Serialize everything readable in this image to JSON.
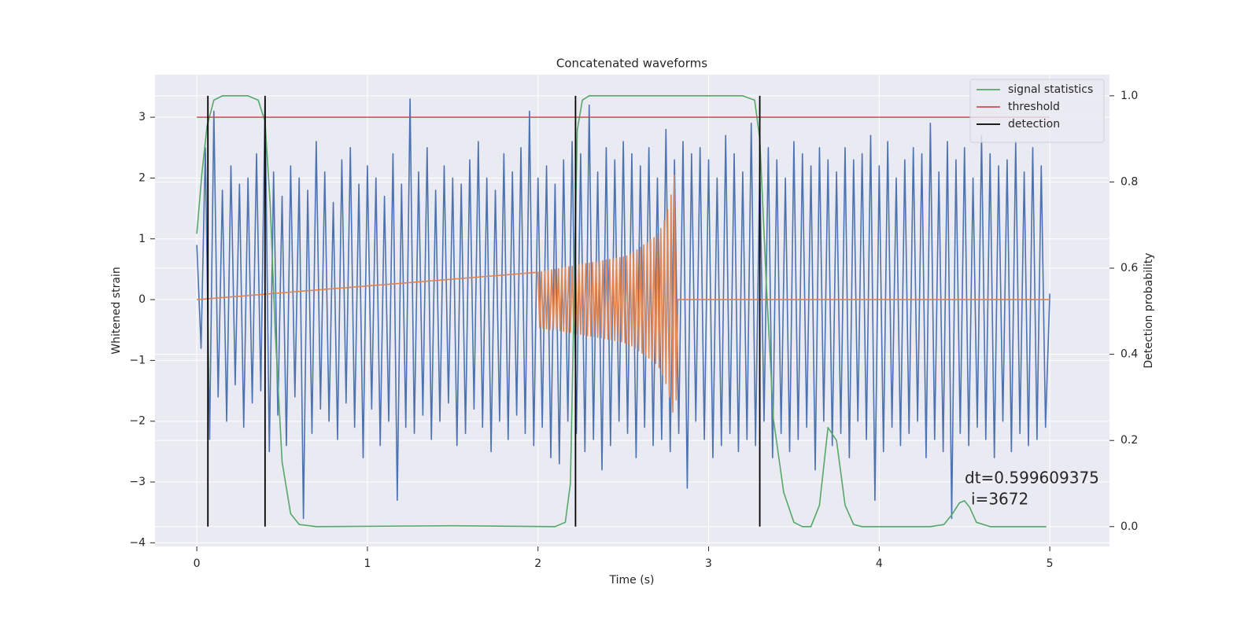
{
  "chart_data": {
    "type": "line",
    "title": "Concatenated waveforms",
    "xlabel": "Time (s)",
    "ylabel": "Whitened strain",
    "y2label": "Detection probability",
    "xlim": [
      -0.245,
      5.35
    ],
    "ylim": [
      -4.06,
      3.7
    ],
    "y2lim": [
      -0.046,
      1.049
    ],
    "xticks": [
      0,
      1,
      2,
      3,
      4,
      5
    ],
    "yticks": [
      {
        "value": -4,
        "label": "−4"
      },
      {
        "value": -3,
        "label": "−3"
      },
      {
        "value": -2,
        "label": "−2"
      },
      {
        "value": -1,
        "label": "−1"
      },
      0,
      1,
      2,
      3
    ],
    "y2ticks": [
      {
        "value": 0,
        "label": "0.0"
      },
      0.2,
      0.4,
      0.6,
      0.8,
      {
        "value": 1,
        "label": "1.0"
      }
    ],
    "grid": true,
    "legend": "upper right",
    "series": [
      {
        "color": "#4c72b0",
        "axis": "y",
        "x": [
          0,
          0.025,
          0.05,
          0.075,
          0.1,
          0.125,
          0.15,
          0.175,
          0.2,
          0.225,
          0.25,
          0.275,
          0.3,
          0.325,
          0.35,
          0.375,
          0.4,
          0.425,
          0.45,
          0.475,
          0.5,
          0.525,
          0.55,
          0.575,
          0.6,
          0.625,
          0.65,
          0.675,
          0.7,
          0.725,
          0.75,
          0.775,
          0.8,
          0.825,
          0.85,
          0.875,
          0.9,
          0.925,
          0.95,
          0.975,
          1,
          1.025,
          1.05,
          1.075,
          1.1,
          1.125,
          1.15,
          1.175,
          1.2,
          1.225,
          1.25,
          1.275,
          1.3,
          1.325,
          1.35,
          1.375,
          1.4,
          1.425,
          1.45,
          1.475,
          1.5,
          1.525,
          1.55,
          1.575,
          1.6,
          1.625,
          1.65,
          1.675,
          1.7,
          1.725,
          1.75,
          1.775,
          1.8,
          1.825,
          1.85,
          1.875,
          1.9,
          1.925,
          1.95,
          1.975,
          2,
          2.025,
          2.05,
          2.075,
          2.1,
          2.125,
          2.15,
          2.175,
          2.2,
          2.225,
          2.25,
          2.275,
          2.3,
          2.325,
          2.35,
          2.375,
          2.4,
          2.425,
          2.45,
          2.475,
          2.5,
          2.525,
          2.55,
          2.575,
          2.6,
          2.625,
          2.65,
          2.675,
          2.7,
          2.725,
          2.75,
          2.775,
          2.8,
          2.825,
          2.85,
          2.875,
          2.9,
          2.925,
          2.95,
          2.975,
          3,
          3.025,
          3.05,
          3.075,
          3.1,
          3.125,
          3.15,
          3.175,
          3.2,
          3.225,
          3.25,
          3.275,
          3.3,
          3.325,
          3.35,
          3.375,
          3.4,
          3.425,
          3.45,
          3.475,
          3.5,
          3.525,
          3.55,
          3.575,
          3.6,
          3.625,
          3.65,
          3.675,
          3.7,
          3.725,
          3.75,
          3.775,
          3.8,
          3.825,
          3.85,
          3.875,
          3.9,
          3.925,
          3.95,
          3.975,
          4,
          4.025,
          4.05,
          4.075,
          4.1,
          4.125,
          4.15,
          4.175,
          4.2,
          4.225,
          4.25,
          4.275,
          4.3,
          4.325,
          4.35,
          4.375,
          4.4,
          4.425,
          4.45,
          4.475,
          4.5,
          4.525,
          4.55,
          4.575,
          4.6,
          4.625,
          4.65,
          4.675,
          4.7,
          4.725,
          4.75,
          4.775,
          4.8,
          4.825,
          4.85,
          4.875,
          4.9,
          4.925,
          4.95,
          4.975,
          5
        ],
        "values": [
          0.9,
          -0.8,
          2.5,
          -2.3,
          3.1,
          -1.6,
          1.8,
          -2.0,
          2.2,
          -1.4,
          1.9,
          -2.1,
          2.0,
          -1.7,
          2.4,
          -1.5,
          3.3,
          -2.5,
          2.1,
          -1.9,
          1.7,
          -2.4,
          2.2,
          -1.6,
          2.0,
          -3.6,
          1.8,
          -2.2,
          2.6,
          -1.8,
          2.1,
          -2.0,
          1.6,
          -2.3,
          2.3,
          -1.7,
          2.5,
          -2.1,
          1.9,
          -2.6,
          2.2,
          -1.8,
          2.0,
          -2.4,
          1.7,
          -2.0,
          2.4,
          -3.3,
          1.9,
          -2.1,
          3.3,
          -2.2,
          2.1,
          -1.9,
          2.5,
          -2.3,
          1.8,
          -2.0,
          2.2,
          -1.7,
          2.0,
          -2.4,
          1.9,
          -2.2,
          2.3,
          -1.8,
          2.6,
          -2.1,
          2.0,
          -2.5,
          1.8,
          -2.0,
          2.4,
          -2.3,
          2.1,
          -1.9,
          2.5,
          -2.2,
          3.1,
          -2.4,
          2.0,
          -2.1,
          2.2,
          -2.6,
          1.9,
          -2.7,
          2.3,
          -2.0,
          2.6,
          -2.2,
          2.4,
          -2.5,
          3.2,
          -2.3,
          2.1,
          -2.8,
          2.5,
          -2.4,
          2.3,
          -2.0,
          2.6,
          -2.2,
          2.4,
          -2.6,
          2.2,
          -2.1,
          2.5,
          -2.4,
          2.0,
          -2.3,
          2.8,
          -2.5,
          2.3,
          -2.2,
          2.6,
          -3.1,
          2.4,
          -2.0,
          2.5,
          -2.3,
          2.3,
          -2.6,
          2.0,
          -2.4,
          2.7,
          -2.2,
          2.4,
          -2.5,
          2.1,
          -2.3,
          2.9,
          -2.4,
          2.2,
          -2.0,
          2.5,
          -2.6,
          2.3,
          -2.2,
          2.0,
          -2.5,
          2.6,
          -2.3,
          2.4,
          -2.1,
          2.2,
          -2.8,
          2.5,
          -2.0,
          2.3,
          -2.4,
          2.1,
          -2.2,
          2.5,
          -2.6,
          2.3,
          -2.0,
          2.4,
          -2.3,
          2.7,
          -3.3,
          2.2,
          -2.5,
          2.6,
          -2.1,
          2.0,
          -2.4,
          2.3,
          -2.2,
          2.5,
          -2.0,
          2.4,
          -2.6,
          2.9,
          -2.3,
          2.1,
          -2.5,
          2.6,
          -3.6,
          2.3,
          -2.2,
          2.5,
          -2.4,
          2.0,
          -2.1,
          2.7,
          -2.3,
          2.4,
          -2.6,
          2.2,
          -2.0,
          2.3,
          -2.5,
          2.6,
          -2.2,
          2.1,
          -2.4,
          2.5,
          -2.3,
          2.2,
          -2.1,
          0.1
        ]
      },
      {
        "color": "#dd8452",
        "axis": "y",
        "x": [
          0,
          2,
          2.01,
          2.02,
          2.03,
          2.04,
          2.05,
          2.06,
          2.07,
          2.08,
          2.09,
          2.1,
          2.11,
          2.12,
          2.13,
          2.14,
          2.15,
          2.16,
          2.17,
          2.18,
          2.19,
          2.2,
          2.21,
          2.22,
          2.23,
          2.24,
          2.25,
          2.26,
          2.27,
          2.28,
          2.29,
          2.3,
          2.31,
          2.32,
          2.33,
          2.34,
          2.35,
          2.36,
          2.37,
          2.38,
          2.39,
          2.4,
          2.41,
          2.42,
          2.43,
          2.44,
          2.45,
          2.46,
          2.47,
          2.48,
          2.49,
          2.5,
          2.51,
          2.52,
          2.53,
          2.54,
          2.55,
          2.56,
          2.57,
          2.58,
          2.59,
          2.6,
          2.61,
          2.62,
          2.63,
          2.64,
          2.65,
          2.66,
          2.67,
          2.68,
          2.69,
          2.7,
          2.71,
          2.72,
          2.73,
          2.74,
          2.75,
          2.76,
          2.77,
          2.78,
          2.79,
          2.8,
          2.81,
          2.82,
          5
        ],
        "values": [
          0,
          0.45,
          -0.46,
          0.46,
          -0.47,
          0.47,
          -0.48,
          0.48,
          -0.49,
          0.49,
          -0.5,
          0.5,
          -0.5,
          0.51,
          -0.51,
          0.52,
          -0.52,
          0.53,
          -0.53,
          0.54,
          -0.54,
          0.55,
          -0.55,
          0.56,
          -0.56,
          0.57,
          -0.57,
          0.58,
          -0.58,
          0.59,
          -0.59,
          0.6,
          -0.6,
          0.61,
          -0.61,
          0.62,
          -0.62,
          0.63,
          -0.63,
          0.64,
          -0.64,
          0.65,
          -0.65,
          0.66,
          -0.66,
          0.67,
          -0.67,
          0.68,
          -0.68,
          0.69,
          -0.69,
          0.7,
          -0.71,
          0.72,
          -0.73,
          0.74,
          -0.76,
          0.78,
          -0.8,
          0.82,
          -0.84,
          0.86,
          -0.88,
          0.9,
          -0.92,
          0.94,
          -0.96,
          0.98,
          -1.0,
          1.02,
          -1.05,
          1.08,
          -1.12,
          1.17,
          -1.23,
          1.3,
          -1.38,
          1.48,
          -1.6,
          1.72,
          -1.85,
          2.05,
          -1.65,
          0,
          0
        ]
      },
      {
        "name": "signal statistics",
        "color": "#55a868",
        "axis": "y2",
        "x": [
          0,
          0.03,
          0.06,
          0.1,
          0.15,
          0.2,
          0.3,
          0.36,
          0.4,
          0.43,
          0.46,
          0.5,
          0.55,
          0.6,
          0.7,
          1.5,
          2.1,
          2.16,
          2.19,
          2.21,
          2.23,
          2.26,
          2.3,
          2.4,
          3.2,
          3.27,
          3.3,
          3.34,
          3.38,
          3.44,
          3.5,
          3.55,
          3.6,
          3.65,
          3.7,
          3.75,
          3.8,
          3.85,
          3.9,
          4.3,
          4.38,
          4.43,
          4.47,
          4.5,
          4.53,
          4.57,
          4.65,
          4.98
        ],
        "values": [
          0.68,
          0.82,
          0.93,
          0.99,
          1.0,
          1.0,
          1.0,
          0.99,
          0.94,
          0.75,
          0.45,
          0.15,
          0.03,
          0.005,
          0.0,
          0.002,
          0.0,
          0.01,
          0.1,
          0.5,
          0.92,
          0.99,
          1.0,
          1.0,
          1.0,
          0.99,
          0.9,
          0.55,
          0.25,
          0.08,
          0.01,
          0.0,
          0.0,
          0.05,
          0.23,
          0.2,
          0.05,
          0.005,
          0.0,
          0.0,
          0.005,
          0.03,
          0.055,
          0.06,
          0.045,
          0.01,
          0.0,
          0.0
        ]
      },
      {
        "name": "threshold",
        "color": "#c44e52",
        "axis": "y",
        "x": [
          0,
          5
        ],
        "values": [
          3,
          3
        ]
      }
    ],
    "detection": {
      "name": "detection",
      "color": "#000000",
      "axis": "y2",
      "x": [
        0.065,
        0.4,
        2.22,
        3.3
      ],
      "span": [
        0,
        1
      ]
    },
    "annotation": [
      "dt=0.599609375",
      "i=3672"
    ]
  }
}
